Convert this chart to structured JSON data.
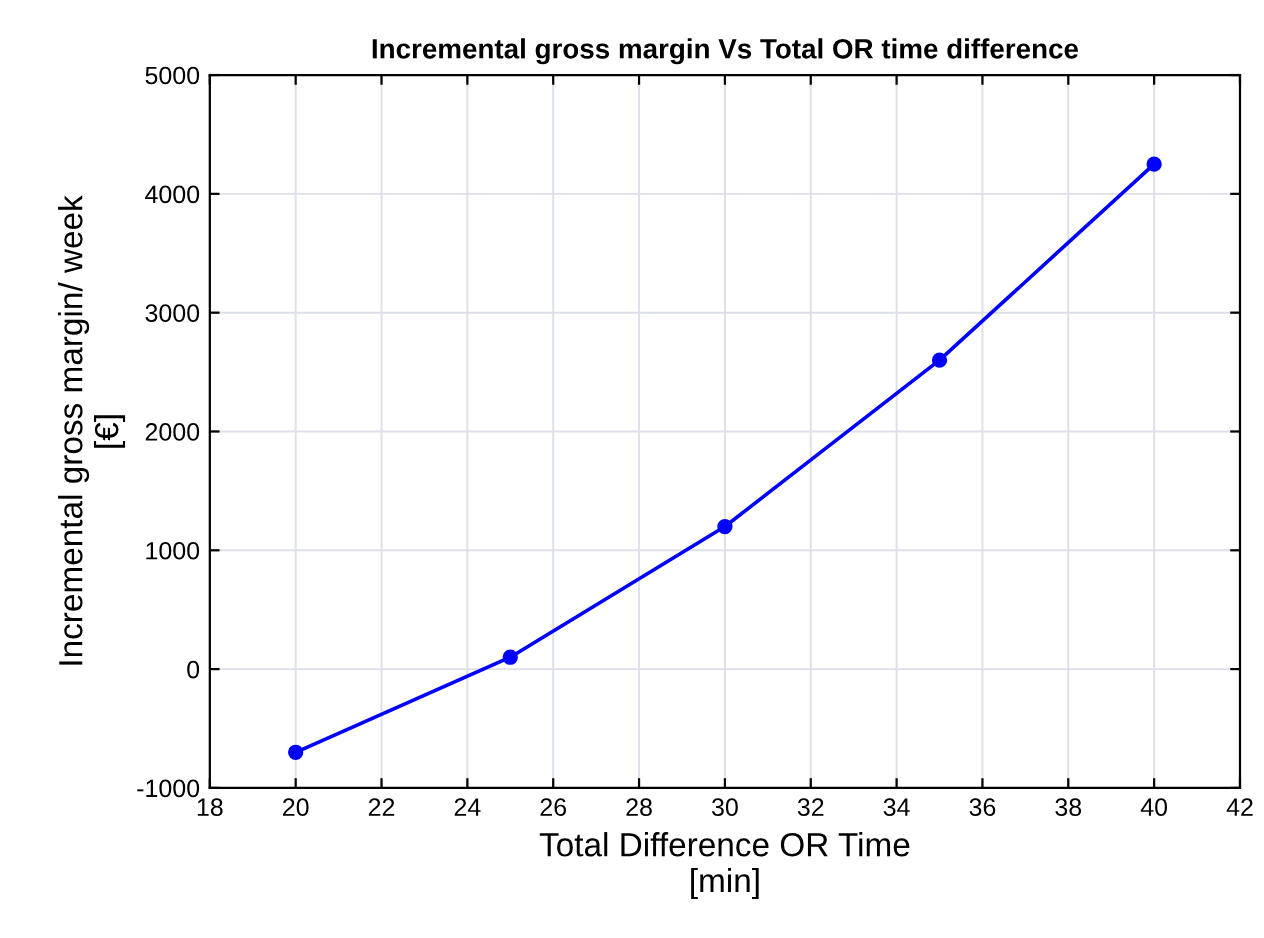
{
  "chart_data": {
    "type": "line",
    "title": "Incremental gross margin Vs Total OR time difference",
    "xlabel": "Total Difference OR Time\n[min]",
    "ylabel": "Incremental gross margin/ week\n[€]",
    "x": [
      20,
      25,
      30,
      35,
      40
    ],
    "series": [
      {
        "color": "#0000ff",
        "values": [
          -700,
          100,
          1200,
          2600,
          4250
        ]
      }
    ],
    "xlim": [
      18,
      42
    ],
    "xticks": [
      18,
      20,
      22,
      24,
      26,
      28,
      30,
      32,
      34,
      36,
      38,
      40,
      42
    ],
    "ylim": [
      -1000,
      5000
    ],
    "yticks": [
      {
        "value": -1000,
        "label": "-1000"
      },
      0,
      1000,
      2000,
      3000,
      4000,
      5000
    ],
    "grid": true,
    "marker": "circle",
    "line_style": "solid"
  }
}
